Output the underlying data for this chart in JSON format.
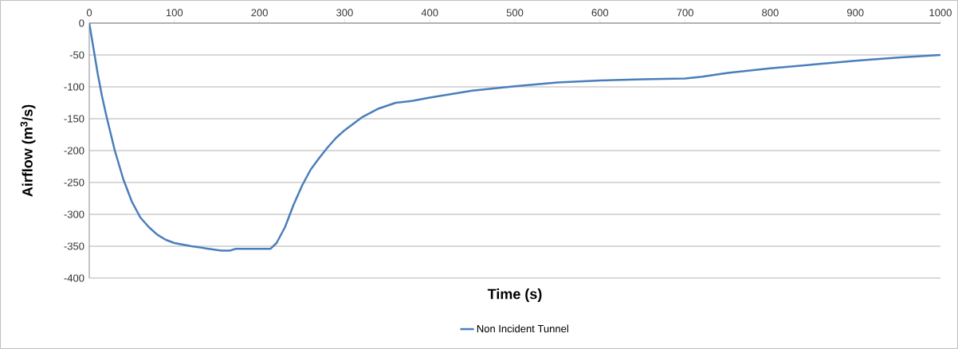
{
  "chart_data": {
    "type": "line",
    "xlabel": "Time (s)",
    "ylabel": "Airflow (m$^{3}$/s)",
    "xlim": [
      0,
      1000
    ],
    "ylim": [
      -400,
      0
    ],
    "xticks": [
      0,
      100,
      200,
      300,
      400,
      500,
      600,
      700,
      800,
      900,
      1000
    ],
    "yticks": [
      -400,
      -350,
      -300,
      -250,
      -200,
      -150,
      -100,
      -50,
      0
    ],
    "grid": "y",
    "legend": "bottom",
    "marker": "none",
    "line_style": "solid",
    "x": [
      0,
      5,
      10,
      15,
      20,
      30,
      40,
      50,
      60,
      70,
      80,
      90,
      100,
      120,
      140,
      155,
      165,
      172,
      200,
      213,
      220,
      230,
      240,
      250,
      260,
      270,
      280,
      290,
      300,
      320,
      340,
      360,
      380,
      400,
      450,
      500,
      550,
      600,
      650,
      700,
      720,
      750,
      800,
      850,
      900,
      950,
      1000
    ],
    "series": [
      {
        "name": "Non Incident Tunnel",
        "color": "#4a7ebb",
        "values": [
          0,
          -40,
          -80,
          -115,
          -145,
          -200,
          -245,
          -280,
          -305,
          -320,
          -332,
          -340,
          -345,
          -350,
          -354,
          -357,
          -357,
          -354,
          -354,
          -354,
          -345,
          -320,
          -285,
          -255,
          -230,
          -212,
          -195,
          -180,
          -168,
          -148,
          -134,
          -125,
          -122,
          -117,
          -106,
          -99,
          -93,
          -90,
          -88,
          -87,
          -84,
          -78,
          -71,
          -65,
          -59,
          -54,
          -50
        ]
      }
    ]
  }
}
